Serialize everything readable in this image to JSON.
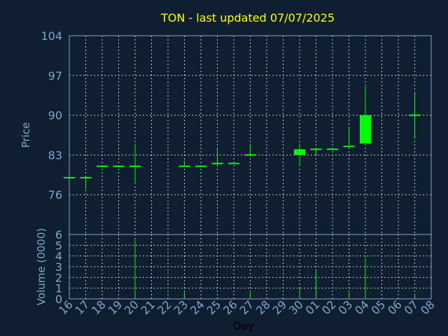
{
  "colors": {
    "background": "#0f1e30",
    "title": "#ffff00",
    "axis_text": "#7fa8c8",
    "grid": "#c8c8c8",
    "candle": "#00ff00"
  },
  "chart_data": [
    {
      "type": "candlestick",
      "title": "TON - last updated 07/07/2025",
      "ylabel": "Price",
      "ylim": [
        69,
        104
      ],
      "yticks": [
        104,
        97,
        90,
        83,
        76
      ],
      "grid": true,
      "days": [
        "16",
        "17",
        "18",
        "19",
        "20",
        "21",
        "22",
        "23",
        "24",
        "25",
        "26",
        "27",
        "28",
        "29",
        "30",
        "01",
        "02",
        "03",
        "04",
        "05",
        "06",
        "07",
        "08"
      ],
      "candles": [
        {
          "day": "16",
          "open": 79,
          "high": 79,
          "low": 79,
          "close": 79
        },
        {
          "day": "17",
          "open": 79,
          "high": 79.2,
          "low": 77,
          "close": 79
        },
        {
          "day": "18",
          "open": 81,
          "high": 81,
          "low": 81,
          "close": 81
        },
        {
          "day": "19",
          "open": 81,
          "high": 81,
          "low": 81,
          "close": 81
        },
        {
          "day": "20",
          "open": 81,
          "high": 85,
          "low": 78,
          "close": 81
        },
        {
          "day": "23",
          "open": 81,
          "high": 82,
          "low": 81,
          "close": 81
        },
        {
          "day": "24",
          "open": 81,
          "high": 81,
          "low": 81,
          "close": 81
        },
        {
          "day": "25",
          "open": 81.5,
          "high": 84,
          "low": 81,
          "close": 81.5
        },
        {
          "day": "26",
          "open": 81.5,
          "high": 81.5,
          "low": 81.5,
          "close": 81.5
        },
        {
          "day": "27",
          "open": 83,
          "high": 85,
          "low": 83,
          "close": 83
        },
        {
          "day": "30",
          "open": 83,
          "high": 85,
          "low": 81,
          "close": 84
        },
        {
          "day": "01",
          "open": 84,
          "high": 84,
          "low": 83,
          "close": 84
        },
        {
          "day": "02",
          "open": 84,
          "high": 84,
          "low": 84,
          "close": 84
        },
        {
          "day": "03",
          "open": 84.5,
          "high": 88,
          "low": 84.5,
          "close": 84.5
        },
        {
          "day": "04",
          "open": 85,
          "high": 95,
          "low": 85,
          "close": 90
        },
        {
          "day": "07",
          "open": 90,
          "high": 94,
          "low": 86,
          "close": 90
        }
      ]
    },
    {
      "type": "bar",
      "ylabel": "Volume (0000)",
      "ylim": [
        0,
        6
      ],
      "yticks": [
        6,
        5,
        4,
        3,
        2,
        1,
        0
      ],
      "xlabel": "Day",
      "grid": true,
      "categories": [
        "20",
        "23",
        "27",
        "30",
        "01",
        "03",
        "04",
        "07"
      ],
      "values": [
        5.5,
        0.6,
        0.6,
        1,
        2.6,
        0.6,
        3.8,
        0.3
      ]
    }
  ]
}
